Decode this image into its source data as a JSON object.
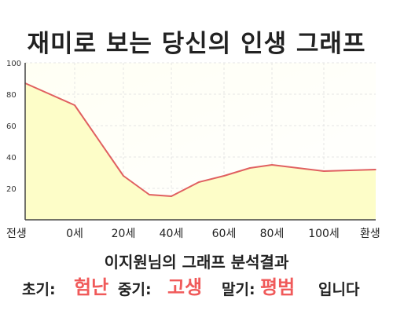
{
  "title": "재미로 보는 당신의 인생 그래프",
  "chart_data": {
    "type": "area",
    "x_labels": [
      "전생",
      "0세",
      "20세",
      "40세",
      "60세",
      "80세",
      "100세",
      "환생"
    ],
    "y_ticks": [
      20,
      40,
      60,
      80,
      100
    ],
    "ylim": [
      0,
      100
    ],
    "points": [
      {
        "x": "전생",
        "y": 87
      },
      {
        "x": "0세",
        "y": 73
      },
      {
        "x": "20세",
        "y": 28
      },
      {
        "x": "30세",
        "y": 16
      },
      {
        "x": "40세",
        "y": 15
      },
      {
        "x": "50세",
        "y": 24
      },
      {
        "x": "60세",
        "y": 28
      },
      {
        "x": "70세",
        "y": 33
      },
      {
        "x": "80세",
        "y": 35
      },
      {
        "x": "100세",
        "y": 31
      },
      {
        "x": "환생",
        "y": 32
      }
    ],
    "line_color": "#e06060",
    "fill_color": "#fdfdc8"
  },
  "subtitle": "이지원님의 그래프 분석결과",
  "result": {
    "early_label": "초기:",
    "early_value": "험난",
    "mid_label": "중기:",
    "mid_value": "고생",
    "late_label": "말기:",
    "late_value": "평범",
    "ending": "입니다"
  },
  "accent_color": "#f05a5a"
}
